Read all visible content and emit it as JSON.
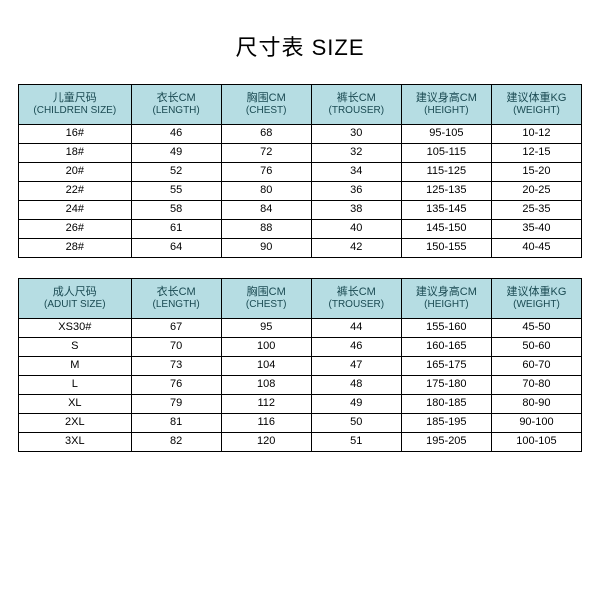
{
  "title": "尺寸表 SIZE",
  "colors": {
    "header_bg": "#b6dde3",
    "header_text": "#1a4a52",
    "border": "#000000",
    "body_text": "#000000",
    "page_bg": "#ffffff"
  },
  "tables": [
    {
      "id": "children",
      "columns": [
        {
          "zh": "儿童尺码",
          "en": "(CHILDREN SIZE)"
        },
        {
          "zh": "衣长CM",
          "en": "(LENGTH)"
        },
        {
          "zh": "胸围CM",
          "en": "(CHEST)"
        },
        {
          "zh": "裤长CM",
          "en": "(TROUSER)"
        },
        {
          "zh": "建议身高CM",
          "en": "(HEIGHT)"
        },
        {
          "zh": "建议体重KG",
          "en": "(WEIGHT)"
        }
      ],
      "rows": [
        [
          "16#",
          "46",
          "68",
          "30",
          "95-105",
          "10-12"
        ],
        [
          "18#",
          "49",
          "72",
          "32",
          "105-115",
          "12-15"
        ],
        [
          "20#",
          "52",
          "76",
          "34",
          "115-125",
          "15-20"
        ],
        [
          "22#",
          "55",
          "80",
          "36",
          "125-135",
          "20-25"
        ],
        [
          "24#",
          "58",
          "84",
          "38",
          "135-145",
          "25-35"
        ],
        [
          "26#",
          "61",
          "88",
          "40",
          "145-150",
          "35-40"
        ],
        [
          "28#",
          "64",
          "90",
          "42",
          "150-155",
          "40-45"
        ]
      ]
    },
    {
      "id": "adult",
      "columns": [
        {
          "zh": "成人尺码",
          "en": "(ADUIT SIZE)"
        },
        {
          "zh": "衣长CM",
          "en": "(LENGTH)"
        },
        {
          "zh": "胸围CM",
          "en": "(CHEST)"
        },
        {
          "zh": "裤长CM",
          "en": "(TROUSER)"
        },
        {
          "zh": "建议身高CM",
          "en": "(HEIGHT)"
        },
        {
          "zh": "建议体重KG",
          "en": "(WEIGHT)"
        }
      ],
      "rows": [
        [
          "XS30#",
          "67",
          "95",
          "44",
          "155-160",
          "45-50"
        ],
        [
          "S",
          "70",
          "100",
          "46",
          "160-165",
          "50-60"
        ],
        [
          "M",
          "73",
          "104",
          "47",
          "165-175",
          "60-70"
        ],
        [
          "L",
          "76",
          "108",
          "48",
          "175-180",
          "70-80"
        ],
        [
          "XL",
          "79",
          "112",
          "49",
          "180-185",
          "80-90"
        ],
        [
          "2XL",
          "81",
          "116",
          "50",
          "185-195",
          "90-100"
        ],
        [
          "3XL",
          "82",
          "120",
          "51",
          "195-205",
          "100-105"
        ]
      ]
    }
  ]
}
